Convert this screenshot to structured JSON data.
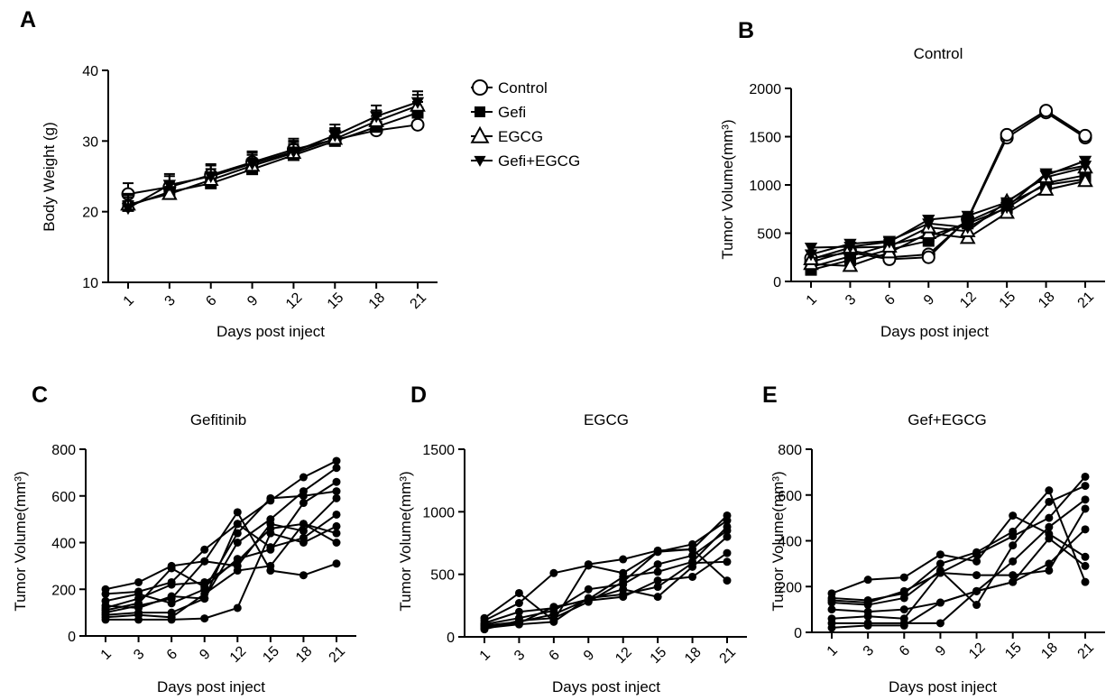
{
  "chart_data": [
    {
      "panel": "A",
      "type": "line",
      "title": "",
      "xlabel": "Days post inject",
      "ylabel": "Body Weight (g)",
      "categories": [
        "1",
        "3",
        "6",
        "9",
        "12",
        "15",
        "18",
        "21"
      ],
      "ylim": [
        10,
        40
      ],
      "yticks": [
        10,
        20,
        30,
        40
      ],
      "error_bars": true,
      "legend": "right",
      "series": [
        {
          "name": "Control",
          "marker": "open-circle",
          "values": [
            22.5,
            23.5,
            25.2,
            27.0,
            28.8,
            30.2,
            31.5,
            32.3
          ]
        },
        {
          "name": "Gefi",
          "marker": "filled-square",
          "values": [
            20.8,
            22.8,
            24.0,
            26.0,
            28.0,
            30.0,
            32.0,
            34.0
          ]
        },
        {
          "name": "EGCG",
          "marker": "open-triangle",
          "values": [
            21.0,
            22.5,
            24.5,
            26.5,
            28.3,
            30.3,
            32.8,
            35.0
          ]
        },
        {
          "name": "Gefi+EGCG",
          "marker": "filled-triangle-down",
          "values": [
            20.5,
            23.8,
            25.0,
            26.8,
            28.5,
            30.8,
            33.5,
            35.5
          ]
        }
      ]
    },
    {
      "panel": "B",
      "type": "line",
      "title": "Control",
      "xlabel": "Days post inject",
      "ylabel": "Tumor Volume(mm³)",
      "categories": [
        "1",
        "3",
        "6",
        "9",
        "12",
        "15",
        "18",
        "21"
      ],
      "ylim": [
        0,
        2000
      ],
      "yticks": [
        0,
        500,
        1000,
        1500,
        2000
      ],
      "series": [
        {
          "marker": "open-circle",
          "values": [
            200,
            320,
            250,
            280,
            640,
            1490,
            1750,
            1490
          ]
        },
        {
          "marker": "open-circle",
          "values": [
            240,
            300,
            230,
            250,
            650,
            1520,
            1770,
            1510
          ]
        },
        {
          "marker": "filled-square",
          "values": [
            120,
            220,
            330,
            420,
            620,
            800,
            1000,
            1060
          ]
        },
        {
          "marker": "filled-square",
          "values": [
            150,
            260,
            380,
            470,
            600,
            760,
            1020,
            1100
          ]
        },
        {
          "marker": "open-triangle",
          "values": [
            180,
            160,
            300,
            500,
            450,
            710,
            950,
            1040
          ]
        },
        {
          "marker": "open-triangle",
          "values": [
            230,
            350,
            360,
            560,
            520,
            830,
            1080,
            1180
          ]
        },
        {
          "marker": "filled-triangle-down",
          "values": [
            350,
            360,
            410,
            640,
            680,
            820,
            1100,
            1250
          ]
        },
        {
          "marker": "filled-triangle-down",
          "values": [
            280,
            390,
            420,
            600,
            560,
            770,
            1120,
            1200
          ]
        }
      ]
    },
    {
      "panel": "C",
      "type": "line",
      "title": "Gefitinib",
      "xlabel": "Days post inject",
      "ylabel": "Tumor Volume(mm³)",
      "categories": [
        "1",
        "3",
        "6",
        "9",
        "12",
        "15",
        "18",
        "21"
      ],
      "ylim": [
        0,
        800
      ],
      "yticks": [
        0,
        200,
        400,
        600,
        800
      ],
      "series": [
        {
          "marker": "filled-circle",
          "values": [
            200,
            230,
            300,
            320,
            530,
            280,
            260,
            310
          ]
        },
        {
          "marker": "filled-circle",
          "values": [
            180,
            190,
            230,
            370,
            480,
            580,
            680,
            750
          ]
        },
        {
          "marker": "filled-circle",
          "values": [
            150,
            180,
            140,
            200,
            440,
            590,
            600,
            620
          ]
        },
        {
          "marker": "filled-circle",
          "values": [
            130,
            120,
            170,
            160,
            400,
            500,
            620,
            720
          ]
        },
        {
          "marker": "filled-circle",
          "values": [
            120,
            160,
            220,
            230,
            320,
            460,
            480,
            440
          ]
        },
        {
          "marker": "filled-circle",
          "values": [
            100,
            130,
            160,
            320,
            300,
            480,
            450,
            590
          ]
        },
        {
          "marker": "filled-circle",
          "values": [
            90,
            100,
            100,
            160,
            480,
            380,
            420,
            520
          ]
        },
        {
          "marker": "filled-circle",
          "values": [
            80,
            90,
            80,
            180,
            280,
            300,
            480,
            400
          ]
        },
        {
          "marker": "filled-circle",
          "values": [
            70,
            70,
            70,
            75,
            120,
            440,
            400,
            470
          ]
        },
        {
          "marker": "filled-circle",
          "values": [
            110,
            140,
            290,
            210,
            330,
            370,
            570,
            660
          ]
        }
      ]
    },
    {
      "panel": "D",
      "type": "line",
      "title": "EGCG",
      "xlabel": "Days post inject",
      "ylabel": "Tumor Volume(mm³)",
      "categories": [
        "1",
        "3",
        "6",
        "9",
        "12",
        "15",
        "18",
        "21"
      ],
      "ylim": [
        0,
        1500
      ],
      "yticks": [
        0,
        500,
        1000,
        1500
      ],
      "series": [
        {
          "marker": "filled-circle",
          "values": [
            150,
            350,
            130,
            580,
            620,
            690,
            700,
            970
          ]
        },
        {
          "marker": "filled-circle",
          "values": [
            130,
            270,
            510,
            570,
            510,
            680,
            740,
            930
          ]
        },
        {
          "marker": "filled-circle",
          "values": [
            110,
            200,
            230,
            300,
            480,
            520,
            600,
            880
          ]
        },
        {
          "marker": "filled-circle",
          "values": [
            100,
            150,
            210,
            380,
            420,
            580,
            650,
            850
          ]
        },
        {
          "marker": "filled-circle",
          "values": [
            90,
            120,
            180,
            300,
            380,
            320,
            560,
            800
          ]
        },
        {
          "marker": "filled-circle",
          "values": [
            80,
            110,
            240,
            290,
            320,
            450,
            480,
            670
          ]
        },
        {
          "marker": "filled-circle",
          "values": [
            70,
            100,
            120,
            310,
            340,
            400,
            590,
            600
          ]
        },
        {
          "marker": "filled-circle",
          "values": [
            60,
            130,
            150,
            280,
            440,
            680,
            700,
            450
          ]
        }
      ]
    },
    {
      "panel": "E",
      "type": "line",
      "title": "Gef+EGCG",
      "xlabel": "Days post inject",
      "ylabel": "Tumor Volume(mm³)",
      "categories": [
        "1",
        "3",
        "6",
        "9",
        "12",
        "15",
        "18",
        "21"
      ],
      "ylim": [
        0,
        800
      ],
      "yticks": [
        0,
        200,
        400,
        600,
        800
      ],
      "series": [
        {
          "marker": "filled-circle",
          "values": [
            170,
            230,
            240,
            340,
            310,
            510,
            430,
            330
          ]
        },
        {
          "marker": "filled-circle",
          "values": [
            150,
            140,
            170,
            300,
            350,
            440,
            620,
            220
          ]
        },
        {
          "marker": "filled-circle",
          "values": [
            140,
            130,
            180,
            260,
            340,
            420,
            500,
            680
          ]
        },
        {
          "marker": "filled-circle",
          "values": [
            130,
            120,
            150,
            270,
            120,
            380,
            570,
            640
          ]
        },
        {
          "marker": "filled-circle",
          "values": [
            100,
            90,
            100,
            130,
            180,
            310,
            460,
            580
          ]
        },
        {
          "marker": "filled-circle",
          "values": [
            60,
            70,
            60,
            260,
            250,
            250,
            270,
            540
          ]
        },
        {
          "marker": "filled-circle",
          "values": [
            40,
            40,
            40,
            40,
            180,
            220,
            300,
            450
          ]
        },
        {
          "marker": "filled-circle",
          "values": [
            20,
            30,
            30,
            130,
            180,
            220,
            410,
            290
          ]
        }
      ]
    }
  ]
}
